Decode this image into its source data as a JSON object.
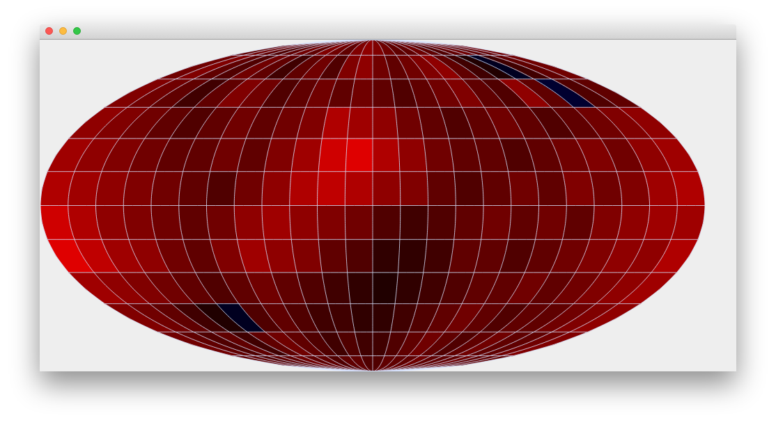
{
  "chart_data": {
    "type": "heatmap",
    "xlim": [
      -180,
      180
    ],
    "ylim": [
      -90,
      90
    ],
    "xticks": [
      -180,
      -165,
      -150,
      -135,
      -120,
      -105,
      -90,
      -75,
      -60,
      -45,
      -30,
      -15,
      0,
      15,
      30,
      45,
      60,
      75,
      90,
      105,
      120,
      135,
      150,
      165,
      180
    ],
    "yticks": [
      -90,
      -75,
      -60,
      -45,
      -30,
      -15,
      0,
      15,
      30,
      45,
      60,
      75,
      90
    ],
    "grid": true,
    "tick_labels": false,
    "color_range": [
      -0.8,
      0.8
    ],
    "cells": [
      [
        0.3,
        0.35,
        0.3,
        0.25,
        0.3,
        0.35,
        0.3,
        0.4,
        0.35,
        0.3,
        0.4,
        0.45,
        0.4,
        0.35,
        0.3,
        0.3,
        0.35,
        0.3,
        0.25,
        0.3,
        0.35,
        0.3,
        0.3,
        0.35
      ],
      [
        0.35,
        0.4,
        0.3,
        0.25,
        0.35,
        0.3,
        0.2,
        0.3,
        0.35,
        0.25,
        0.4,
        0.45,
        0.35,
        0.3,
        0.35,
        0.4,
        0.45,
        0.3,
        0.2,
        0.1,
        -0.1,
        0.2,
        0.3,
        0.35
      ],
      [
        0.4,
        0.35,
        0.3,
        0.2,
        0.3,
        0.4,
        0.35,
        0.25,
        0.3,
        0.35,
        0.3,
        0.35,
        0.3,
        0.25,
        0.3,
        0.35,
        0.4,
        0.3,
        0.25,
        0.45,
        0.3,
        -0.15,
        0.25,
        0.3
      ],
      [
        0.45,
        0.4,
        0.35,
        0.3,
        0.25,
        0.3,
        0.35,
        0.3,
        0.35,
        0.4,
        0.55,
        0.5,
        0.45,
        0.35,
        0.3,
        0.25,
        0.3,
        0.35,
        0.3,
        0.25,
        0.3,
        0.35,
        0.4,
        0.45
      ],
      [
        0.5,
        0.45,
        0.4,
        0.35,
        0.3,
        0.3,
        0.35,
        0.3,
        0.4,
        0.5,
        0.65,
        0.7,
        0.55,
        0.45,
        0.35,
        0.3,
        0.3,
        0.25,
        0.3,
        0.35,
        0.4,
        0.35,
        0.45,
        0.5
      ],
      [
        0.55,
        0.5,
        0.45,
        0.4,
        0.35,
        0.3,
        0.25,
        0.35,
        0.45,
        0.55,
        0.6,
        0.55,
        0.45,
        0.4,
        0.3,
        0.25,
        0.3,
        0.35,
        0.3,
        0.4,
        0.35,
        0.4,
        0.5,
        0.55
      ],
      [
        0.65,
        0.55,
        0.45,
        0.4,
        0.35,
        0.3,
        0.35,
        0.45,
        0.5,
        0.45,
        0.4,
        0.35,
        0.25,
        0.2,
        0.25,
        0.3,
        0.35,
        0.3,
        0.35,
        0.3,
        0.4,
        0.45,
        0.5,
        0.5
      ],
      [
        0.7,
        0.6,
        0.5,
        0.45,
        0.35,
        0.3,
        0.4,
        0.5,
        0.45,
        0.4,
        0.3,
        0.25,
        0.15,
        0.15,
        0.2,
        0.3,
        0.3,
        0.25,
        0.3,
        0.35,
        0.4,
        0.45,
        0.45,
        0.55
      ],
      [
        0.5,
        0.45,
        0.4,
        0.35,
        0.3,
        0.25,
        0.3,
        0.35,
        0.3,
        0.25,
        0.2,
        0.15,
        0.1,
        0.15,
        0.2,
        0.25,
        0.3,
        0.3,
        0.35,
        0.3,
        0.35,
        0.4,
        0.45,
        0.5
      ],
      [
        0.4,
        0.35,
        0.3,
        0.2,
        0.1,
        -0.1,
        0.25,
        0.3,
        0.25,
        0.2,
        0.2,
        0.15,
        0.15,
        0.2,
        0.25,
        0.3,
        0.35,
        0.3,
        0.25,
        0.3,
        0.3,
        0.35,
        0.4,
        0.45
      ],
      [
        0.35,
        0.3,
        0.25,
        0.3,
        0.2,
        0.3,
        0.35,
        0.3,
        0.25,
        0.2,
        0.25,
        0.2,
        0.2,
        0.25,
        0.3,
        0.35,
        0.3,
        0.25,
        0.3,
        0.35,
        0.3,
        0.3,
        0.35,
        0.4
      ],
      [
        0.3,
        0.3,
        0.25,
        0.3,
        0.3,
        0.35,
        0.3,
        0.3,
        0.25,
        0.3,
        0.3,
        0.25,
        0.25,
        0.3,
        0.3,
        0.3,
        0.35,
        0.3,
        0.3,
        0.3,
        0.35,
        0.3,
        0.3,
        0.3
      ]
    ]
  }
}
